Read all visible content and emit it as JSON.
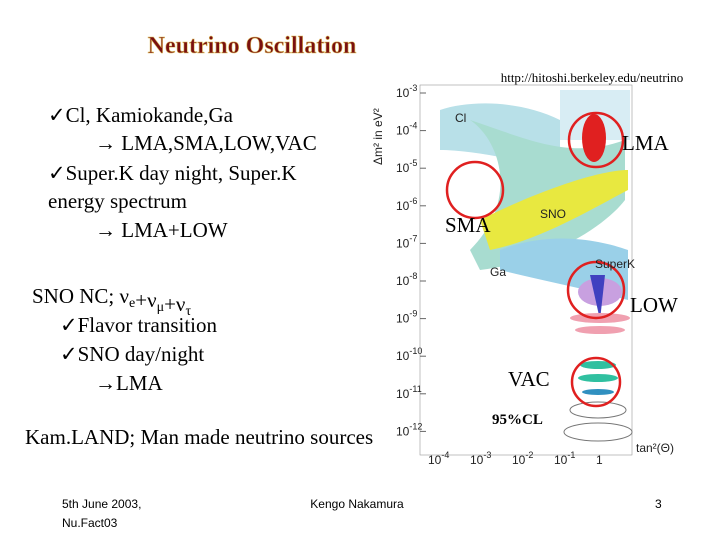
{
  "header": {
    "title": "Neutrino Oscillation",
    "url": "http://hitoshi.berkeley.edu/neutrino"
  },
  "block1": [
    "✓Cl, Kamiokande,Ga",
    "→ LMA,SMA,LOW,VAC",
    "✓Super.K day night,  Super.K",
    "energy spectrum",
    "→ LMA+LOW"
  ],
  "block2": {
    "heading": [
      {
        "text": "SNO NC; ν",
        "sub": "e"
      },
      {
        "text": "+ν",
        "sub": "μ"
      },
      {
        "text": "+ν",
        "sub": "τ"
      }
    ],
    "lines": [
      "✓Flavor transition",
      "✓SNO day/night",
      "→LMA"
    ]
  },
  "kamland": "Kam.LAND; Man made neutrino sources",
  "plot": {
    "y_label": "Δm² in eV²",
    "x_label": "tan²(Θ)",
    "yticks": [
      {
        "base": "10",
        "exp": "-3"
      },
      {
        "base": "10",
        "exp": "-4"
      },
      {
        "base": "10",
        "exp": "-5"
      },
      {
        "base": "10",
        "exp": "-6"
      },
      {
        "base": "10",
        "exp": "-7"
      },
      {
        "base": "10",
        "exp": "-8"
      },
      {
        "base": "10",
        "exp": "-9"
      },
      {
        "base": "10",
        "exp": "-10"
      },
      {
        "base": "10",
        "exp": "-11"
      },
      {
        "base": "10",
        "exp": "-12"
      }
    ],
    "xticks": [
      {
        "base": "10",
        "exp": "-4"
      },
      {
        "base": "10",
        "exp": "-3"
      },
      {
        "base": "10",
        "exp": "-2"
      },
      {
        "base": "10",
        "exp": "-1"
      },
      {
        "base": "1",
        "exp": ""
      }
    ],
    "regions": [
      "Cl",
      "SNO",
      "Ga",
      "SuperK"
    ],
    "solutions": [
      "LMA",
      "SMA",
      "LOW",
      "VAC"
    ],
    "cl": "95%CL"
  },
  "footer": {
    "date": [
      "5th June 2003,",
      "Nu.Fact03"
    ],
    "author": "Kengo Nakamura",
    "page": "3"
  }
}
